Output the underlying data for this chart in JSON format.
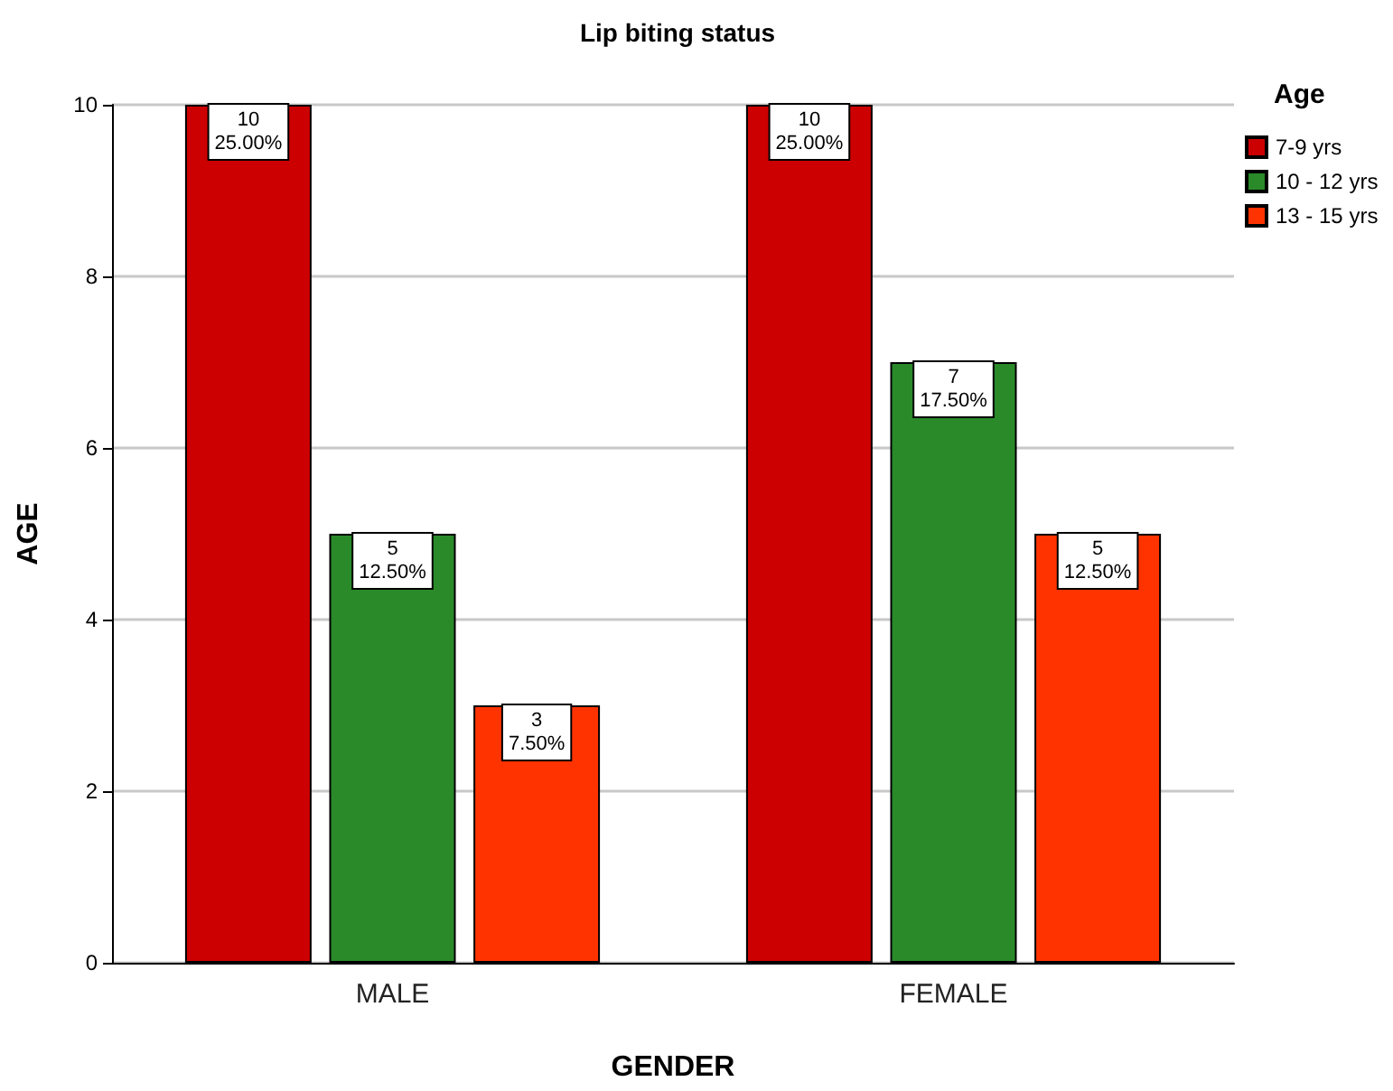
{
  "chart_data": {
    "type": "bar",
    "title": "Lip biting status",
    "xlabel": "GENDER",
    "ylabel": "AGE",
    "legend_title": "Age",
    "categories": [
      "MALE",
      "FEMALE"
    ],
    "series": [
      {
        "name": "7-9 yrs",
        "color": "#cc0000",
        "values": [
          10,
          10
        ],
        "value_labels": [
          "10\n25.00%",
          "10\n25.00%"
        ]
      },
      {
        "name": "10 - 12 yrs",
        "color": "#2a8a2a",
        "values": [
          5,
          7
        ],
        "value_labels": [
          "5\n12.50%",
          "7\n17.50%"
        ]
      },
      {
        "name": "13 - 15 yrs",
        "color": "#ff3300",
        "values": [
          3,
          5
        ],
        "value_labels": [
          "3\n7.50%",
          "5\n12.50%"
        ]
      }
    ],
    "ylim": [
      0,
      10
    ],
    "yticks": [
      0,
      2,
      4,
      6,
      8,
      10
    ],
    "grid": "y",
    "legend": "top right"
  }
}
